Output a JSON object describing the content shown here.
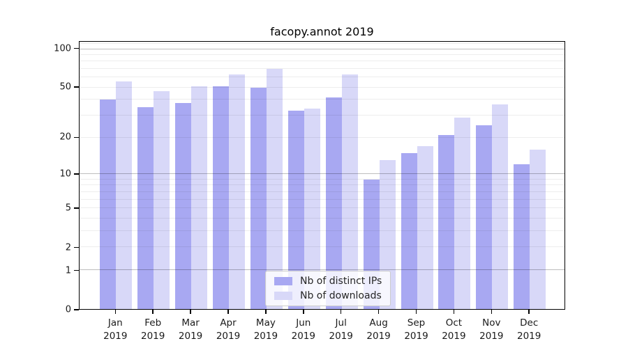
{
  "title": "facopy.annot 2019",
  "colors": {
    "ips_bar": "#a8a8f2",
    "downloads_bar": "#d8d8f8",
    "spine": "#000000",
    "grid_minor": "rgba(0,0,0,0.07)",
    "grid_major": "rgba(0,0,0,0.26)"
  },
  "y_axis": {
    "tick_labels": [
      "100",
      "50",
      "20",
      "10",
      "5",
      "2",
      "1",
      "0"
    ],
    "tick_values": [
      100,
      50,
      20,
      10,
      5,
      2,
      1,
      0
    ],
    "major_gridline_values": [
      1,
      10,
      100
    ],
    "minor_gridline_values": [
      2,
      3,
      4,
      5,
      6,
      7,
      8,
      9,
      20,
      30,
      40,
      50,
      60,
      70,
      80,
      90,
      110
    ]
  },
  "x_axis": {
    "tick_line1": [
      "Jan",
      "Feb",
      "Mar",
      "Apr",
      "May",
      "Jun",
      "Jul",
      "Aug",
      "Sep",
      "Oct",
      "Nov",
      "Dec"
    ],
    "tick_line2": [
      "2019",
      "2019",
      "2019",
      "2019",
      "2019",
      "2019",
      "2019",
      "2019",
      "2019",
      "2019",
      "2019",
      "2019"
    ]
  },
  "legend": {
    "entries": [
      {
        "label": "Nb of distinct IPs",
        "series": "ips"
      },
      {
        "label": "Nb of downloads",
        "series": "downloads"
      }
    ]
  },
  "chart_data": {
    "type": "bar",
    "title": "facopy.annot 2019",
    "categories": [
      "Jan 2019",
      "Feb 2019",
      "Mar 2019",
      "Apr 2019",
      "May 2019",
      "Jun 2019",
      "Jul 2019",
      "Aug 2019",
      "Sep 2019",
      "Oct 2019",
      "Nov 2019",
      "Dec 2019"
    ],
    "series": [
      {
        "name": "Nb of distinct IPs",
        "color": "#a8a8f2",
        "values": [
          40,
          35,
          38,
          51,
          50,
          33,
          42,
          9,
          15,
          21,
          25,
          12
        ]
      },
      {
        "name": "Nb of downloads",
        "color": "#d8d8f8",
        "values": [
          56,
          47,
          51,
          63,
          70,
          34,
          63,
          13,
          17,
          29,
          37,
          16
        ]
      }
    ],
    "xlabel": "",
    "ylabel": "",
    "yscale": "log1p",
    "ylim": [
      0,
      114
    ],
    "grid": true,
    "legend_position": "lower center"
  }
}
